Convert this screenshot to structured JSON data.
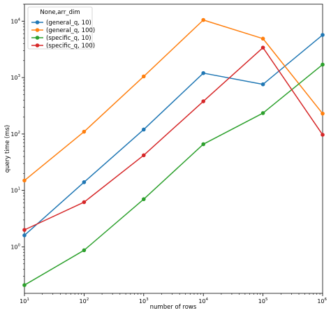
{
  "chart_data": {
    "type": "line",
    "xscale": "log",
    "yscale": "log",
    "xlabel": "number of rows",
    "ylabel": "query time (ms)",
    "xlim": [
      10,
      1000000
    ],
    "ylim": [
      0.15,
      20000
    ],
    "x": [
      10,
      100,
      1000,
      10000,
      100000,
      1000000
    ],
    "x_ticks": [
      {
        "value": 10,
        "base": "10",
        "exp": "1"
      },
      {
        "value": 100,
        "base": "10",
        "exp": "2"
      },
      {
        "value": 1000,
        "base": "10",
        "exp": "3"
      },
      {
        "value": 10000,
        "base": "10",
        "exp": "4"
      },
      {
        "value": 100000,
        "base": "10",
        "exp": "5"
      },
      {
        "value": 1000000,
        "base": "10",
        "exp": "6"
      }
    ],
    "y_ticks": [
      {
        "value": 1,
        "base": "10",
        "exp": "0"
      },
      {
        "value": 10,
        "base": "10",
        "exp": "1"
      },
      {
        "value": 100,
        "base": "10",
        "exp": "2"
      },
      {
        "value": 1000,
        "base": "10",
        "exp": "3"
      },
      {
        "value": 10000,
        "base": "10",
        "exp": "4"
      }
    ],
    "legend": {
      "title": "None,arr_dim",
      "position": "top-left"
    },
    "grid": false,
    "series": [
      {
        "name": "(general_q, 10)",
        "color": "#1f77b4",
        "values": [
          1.6,
          14,
          120,
          1200,
          760,
          5700
        ]
      },
      {
        "name": "(general_q, 100)",
        "color": "#ff7f0e",
        "values": [
          15,
          110,
          1050,
          10500,
          4900,
          230
        ]
      },
      {
        "name": "(specific_q, 10)",
        "color": "#2ca02c",
        "values": [
          0.21,
          0.87,
          7,
          66,
          235,
          1700
        ]
      },
      {
        "name": "(specific_q, 100)",
        "color": "#d62728",
        "values": [
          2,
          6.2,
          42,
          380,
          3400,
          97
        ]
      }
    ]
  }
}
